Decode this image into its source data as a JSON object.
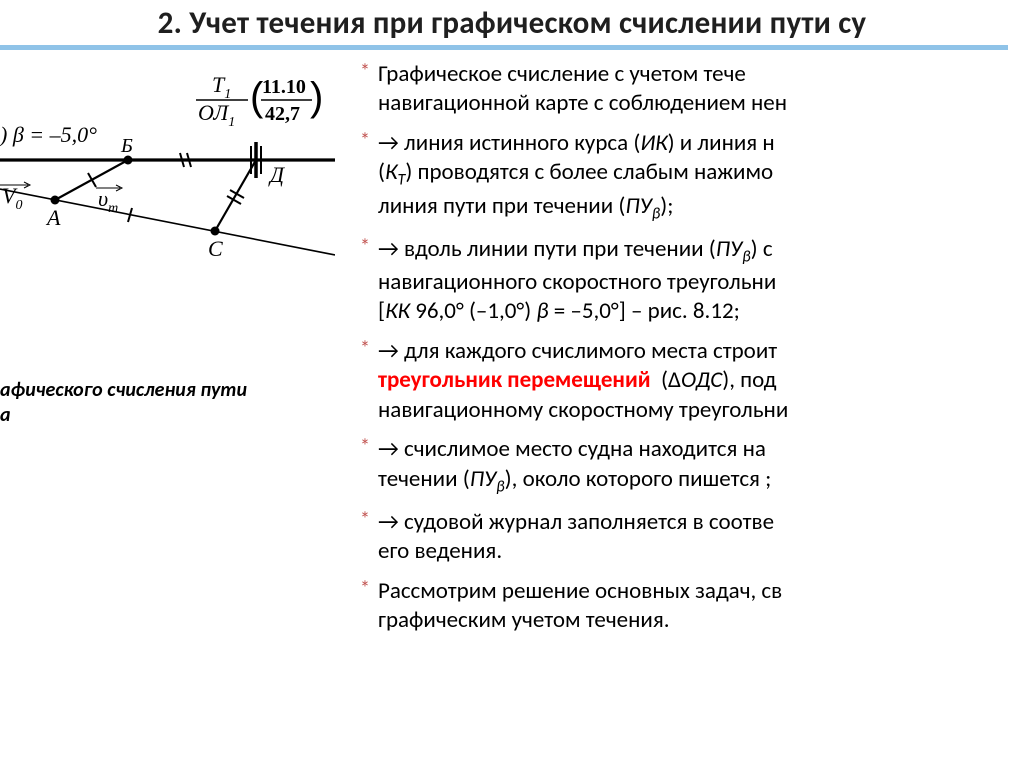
{
  "title": "2. Учет течения при графическом счислении пути су",
  "caption": "афического счисления пути\nа",
  "diagram": {
    "beta_label": ") β = –5,0°",
    "fraction_top": "T",
    "fraction_top_sub": "1",
    "fraction_bottom": "ОЛ",
    "fraction_bottom_sub": "1",
    "paren_top": "11.10",
    "paren_bottom": "42,7",
    "V0_label": "V",
    "V0_sub": "0",
    "vt_label": "υ",
    "vt_sub": "т",
    "pt_A": "А",
    "pt_B": "Б",
    "pt_C": "С",
    "pt_D": "Д",
    "colors": {
      "line": "#000000",
      "background": "#ffffff"
    },
    "style": {
      "thick_line_w": 3.2,
      "thin_line_w": 1.6,
      "font_size_labels": 20,
      "font_family": "Times New Roman, serif"
    }
  },
  "bullets": [
    {
      "star": "*",
      "html": "Графическое счисление с учетом тече<br>навигационной карте с соблюдением нен"
    },
    {
      "star": "*",
      "html": "→ линия истинного курса (<span class='it'>ИК</span>) и линия н<br>(<span class='it'>К<span class='sub'>Т</span></span>) проводятся с более слабым нажимо<br>линия пути при течении (<span class='it'>ПУ<span class='sub'>β</span></span>);"
    },
    {
      "star": "*",
      "html": "→ вдоль линии пути при течении (<span class='it'>ПУ<span class='sub'>β</span></span>) с<br>навигационного скоростного треугольни<br>[<span class='it'>КК</span> 96,0° (–1,0°) <span class='it'>β</span> = –5,0°] – рис. 8.12;"
    },
    {
      "star": "*",
      "html": "→ для каждого счислимого места строит<br><span class='red-bold'>треугольник перемещений</span>&nbsp; (Δ<span class='it'>ОДС</span>), под<br>навигационному скоростному треугольни"
    },
    {
      "star": "*",
      "html": "→ счислимое место судна находится на <br>течении (<span class='it'>ПУ<span class='sub'>β</span></span>), около которого пишется ;"
    },
    {
      "star": "*",
      "html": "→ судовой журнал заполняется в соотве<br>его ведения."
    },
    {
      "star": "*",
      "html": "Рассмотрим решение основных задач, св<br>графическим учетом течения."
    }
  ],
  "styling": {
    "star_color": "#c0504d",
    "body_font_size": 23,
    "title_font_size": 31,
    "title_color": "#1f1f1f",
    "band_color": "#8fc3e8",
    "red": "#ff0000"
  }
}
